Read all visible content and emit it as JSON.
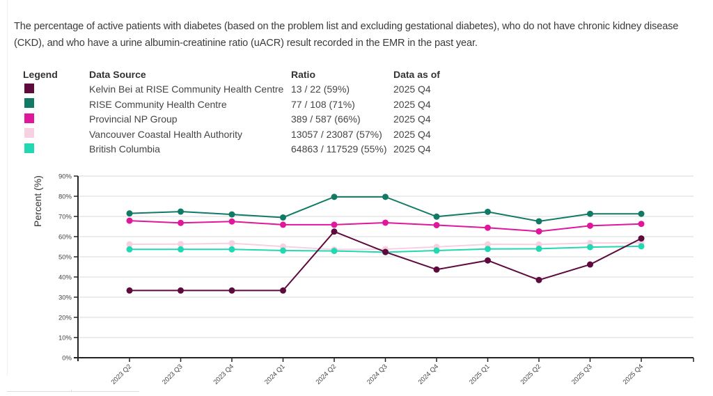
{
  "description": "The percentage of active patients with diabetes (based on the problem list and excluding gestational diabetes), who do not have chronic kidney disease (CKD), and who have a urine albumin-creatinine ratio (uACR) result recorded in the EMR in the past year.",
  "legend_table": {
    "headers": {
      "legend": "Legend",
      "source": "Data Source",
      "ratio": "Ratio",
      "as_of": "Data as of"
    },
    "rows": [
      {
        "color": "#5e0a3c",
        "source": "Kelvin Bei at RISE Community Health Centre",
        "ratio": "13 / 22 (59%)",
        "as_of": "2025 Q4"
      },
      {
        "color": "#117a64",
        "source": "RISE Community Health Centre",
        "ratio": "77 / 108 (71%)",
        "as_of": "2025 Q4"
      },
      {
        "color": "#e0179a",
        "source": "Provincial NP Group",
        "ratio": "389 / 587 (66%)",
        "as_of": "2025 Q4"
      },
      {
        "color": "#f7d0e1",
        "source": "Vancouver Coastal Health Authority",
        "ratio": "13057 / 23087 (57%)",
        "as_of": "2025 Q4"
      },
      {
        "color": "#22d8b2",
        "source": "British Columbia",
        "ratio": "64863 / 117529 (55%)",
        "as_of": "2025 Q4"
      }
    ]
  },
  "chart_data": {
    "type": "line",
    "title": "",
    "xlabel": "",
    "ylabel": "Percent (%)",
    "ylim": [
      0,
      90
    ],
    "yticks": [
      0,
      10,
      20,
      30,
      40,
      50,
      60,
      70,
      80,
      90
    ],
    "ytick_labels": [
      "0%",
      "10%",
      "20%",
      "30%",
      "40%",
      "50%",
      "60%",
      "70%",
      "80%",
      "90%"
    ],
    "grid": true,
    "legend_position": "above-chart-table",
    "categories": [
      "2023 Q2",
      "2023 Q3",
      "2023 Q4",
      "2024 Q1",
      "2024 Q2",
      "2024 Q3",
      "2024 Q4",
      "2025 Q1",
      "2025 Q2",
      "2025 Q3",
      "2025 Q4"
    ],
    "series": [
      {
        "name": "Vancouver Coastal Health Authority",
        "color": "#f7d0e1",
        "values": [
          56.2,
          56.3,
          56.7,
          55.1,
          53.6,
          53.8,
          54.9,
          56.2,
          56.1,
          56.8,
          57
        ]
      },
      {
        "name": "British Columbia",
        "color": "#22d8b2",
        "values": [
          53.7,
          53.7,
          53.7,
          53.1,
          52.9,
          52.3,
          53.1,
          53.9,
          54.0,
          54.8,
          55.2
        ]
      },
      {
        "name": "Provincial NP Group",
        "color": "#e0179a",
        "values": [
          67.9,
          66.8,
          67.5,
          65.9,
          65.9,
          66.9,
          65.7,
          64.4,
          62.6,
          65.4,
          66.3
        ]
      },
      {
        "name": "RISE Community Health Centre",
        "color": "#117a64",
        "values": [
          71.5,
          72.4,
          71.0,
          69.5,
          79.7,
          79.7,
          69.9,
          72.3,
          67.6,
          71.3,
          71.3
        ]
      },
      {
        "name": "Kelvin Bei at RISE Community Health Centre",
        "color": "#5e0a3c",
        "values": [
          33.3,
          33.3,
          33.3,
          33.3,
          62.5,
          52.4,
          43.7,
          48.2,
          38.5,
          46.2,
          59.1
        ]
      }
    ]
  }
}
